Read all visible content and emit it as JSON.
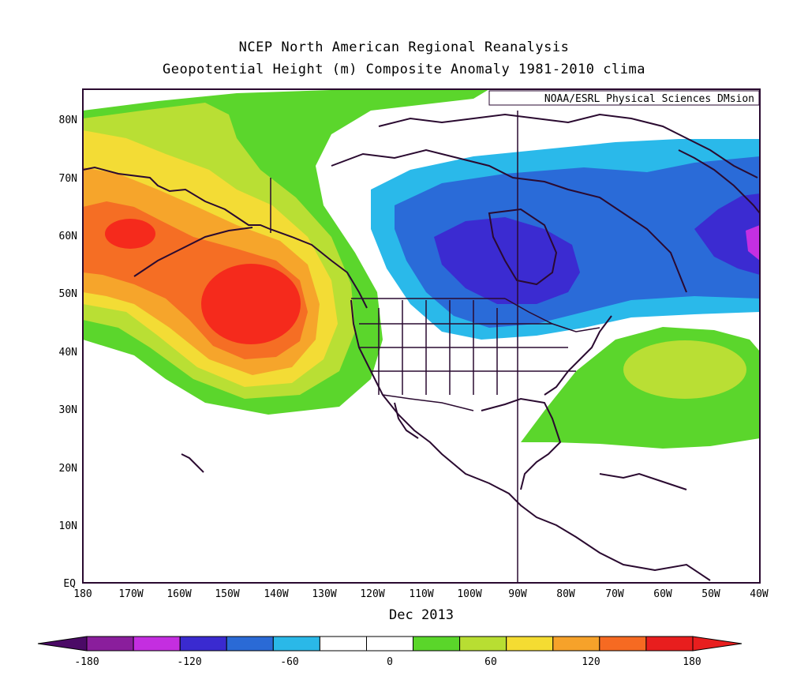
{
  "title_line1": "NCEP North American Regional Reanalysis",
  "title_line2": "Geopotential Height (m) Composite Anomaly 1981-2010 clima",
  "credit": "NOAA/ESRL Physical Sciences DMsion",
  "date_label": "Dec 2013",
  "map": {
    "lat_labels": [
      "EQ",
      "10N",
      "20N",
      "30N",
      "40N",
      "50N",
      "60N",
      "70N",
      "80N"
    ],
    "lon_labels": [
      "180",
      "170W",
      "160W",
      "150W",
      "140W",
      "130W",
      "120W",
      "110W",
      "100W",
      "90W",
      "80W",
      "70W",
      "60W",
      "50W",
      "40W"
    ]
  },
  "colorbar": {
    "tick_labels": [
      "-180",
      "-120",
      "-60",
      "0",
      "60",
      "120",
      "180"
    ],
    "colors": [
      "#4b0a66",
      "#8a1e9c",
      "#c42ee0",
      "#3a2ad0",
      "#2a6ad6",
      "#2ab8e8",
      "#ffffff",
      "#ffffff",
      "#5ad62a",
      "#b8de32",
      "#f4dc32",
      "#f6a22a",
      "#f66a22",
      "#e81e1e",
      "#e81e1e"
    ]
  },
  "anomaly_colors": {
    "strong_positive": "#f52a1c",
    "positive_orange_red": "#f56e24",
    "positive_orange": "#f6a52b",
    "positive_yellow": "#f3dc35",
    "positive_yellowgreen": "#b9df34",
    "positive_green": "#5bd62c",
    "negative_lightblue": "#2ab9ea",
    "negative_blue": "#2a6bd8",
    "negative_indigo": "#3b2bd1",
    "strong_negative_magenta": "#c52fe2"
  }
}
